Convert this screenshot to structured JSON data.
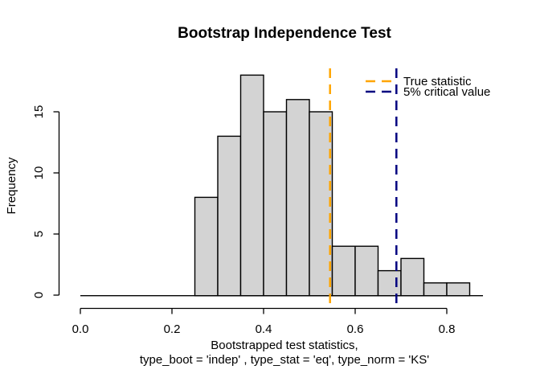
{
  "page": {
    "background": "#FFFFFF"
  },
  "chart_data": {
    "type": "bar",
    "subtype": "histogram",
    "title": "Bootstrap Independence Test",
    "xlabel_line1": "Bootstrapped test statistics,",
    "xlabel_line2": "type_boot = 'indep' , type_stat = 'eq', type_norm = 'KS'",
    "ylabel": "Frequency",
    "bins": {
      "start": 0.25,
      "width": 0.05
    },
    "counts": [
      8,
      13,
      18,
      15,
      16,
      15,
      4,
      4,
      2,
      3,
      1,
      1
    ],
    "bin_edges": [
      0.25,
      0.3,
      0.35,
      0.4,
      0.45,
      0.5,
      0.55,
      0.6,
      0.65,
      0.7,
      0.75,
      0.8,
      0.85
    ],
    "x_tick_values": [
      0.0,
      0.2,
      0.4,
      0.6,
      0.8
    ],
    "x_tick_labels": [
      "0.0",
      "0.2",
      "0.4",
      "0.6",
      "0.8"
    ],
    "y_tick_values": [
      0,
      5,
      10,
      15
    ],
    "y_tick_labels": [
      "0",
      "5",
      "10",
      "15"
    ],
    "ylim": [
      0,
      18.7
    ],
    "xlim": [
      -0.03,
      0.88
    ],
    "grid": false,
    "baseline_span": [
      0.0,
      0.879
    ],
    "bar_fill": "#D3D3D3",
    "bar_stroke": "#000000",
    "axis_color": "#000000",
    "vlines": [
      {
        "name": "true-statistic-line",
        "x": 0.545,
        "color": "#FFA500",
        "style": "dashed",
        "label": "True statistic"
      },
      {
        "name": "critical-value-line",
        "x": 0.69,
        "color": "#000080",
        "style": "dashed",
        "label": "5% critical value"
      }
    ],
    "legend": {
      "position": "top-right",
      "entries": [
        {
          "label": "True statistic",
          "color": "#FFA500",
          "line_style": "dashed"
        },
        {
          "label": "5% critical value",
          "color": "#000080",
          "line_style": "dashed"
        }
      ]
    }
  }
}
